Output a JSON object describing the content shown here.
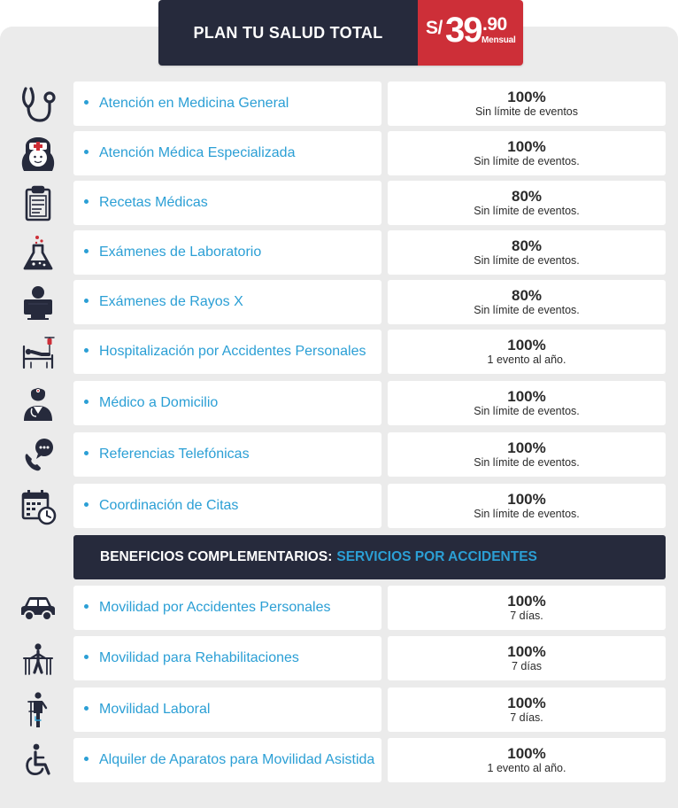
{
  "plan": {
    "title": "PLAN TU SALUD TOTAL",
    "price_currency": "S/",
    "price_integer": "39",
    "price_decimal": ".90",
    "price_period": "Mensual"
  },
  "benefits": [
    {
      "label": "Atención en Medicina General",
      "percent": "100%",
      "note": "Sin límite de eventos",
      "icon": "stethoscope-icon"
    },
    {
      "label": "Atención Médica Especializada",
      "percent": "100%",
      "note": "Sin límite de eventos.",
      "icon": "nurse-icon"
    },
    {
      "label": "Recetas Médicas",
      "percent": "80%",
      "note": "Sin límite de eventos.",
      "icon": "clipboard-icon"
    },
    {
      "label": "Exámenes de Laboratorio",
      "percent": "80%",
      "note": "Sin límite de eventos.",
      "icon": "flask-icon"
    },
    {
      "label": "Exámenes de Rayos X",
      "percent": "80%",
      "note": "Sin límite de eventos.",
      "icon": "xray-icon"
    },
    {
      "label": "Hospitalización por Accidentes Personales",
      "percent": "100%",
      "note": "1 evento al año.",
      "icon": "hospital-bed-icon"
    },
    {
      "label": "Médico a Domicilio",
      "percent": "100%",
      "note": "Sin límite de eventos.",
      "icon": "doctor-icon"
    },
    {
      "label": "Referencias Telefónicas",
      "percent": "100%",
      "note": "Sin límite de eventos.",
      "icon": "phone-chat-icon"
    },
    {
      "label": "Coordinación de Citas",
      "percent": "100%",
      "note": "Sin límite de eventos.",
      "icon": "calendar-clock-icon"
    }
  ],
  "section": {
    "title": "BENEFICIOS COMPLEMENTARIOS:",
    "accent": "SERVICIOS POR ACCIDENTES"
  },
  "complementary": [
    {
      "label": "Movilidad por Accidentes Personales",
      "percent": "100%",
      "note": "7 días.",
      "icon": "car-icon"
    },
    {
      "label": "Movilidad para Rehabilitaciones",
      "percent": "100%",
      "note": "7 días",
      "icon": "rehab-walker-icon"
    },
    {
      "label": "Movilidad Laboral",
      "percent": "100%",
      "note": "7 días.",
      "icon": "crutch-person-icon"
    },
    {
      "label": "Alquiler de Aparatos para Movilidad Asistida",
      "percent": "100%",
      "note": "1 evento al año.",
      "icon": "wheelchair-icon"
    }
  ],
  "colors": {
    "navy": "#262a3c",
    "red": "#cd2f38",
    "accent_blue": "#2b9fd5",
    "panel_gray": "#ebebeb"
  }
}
